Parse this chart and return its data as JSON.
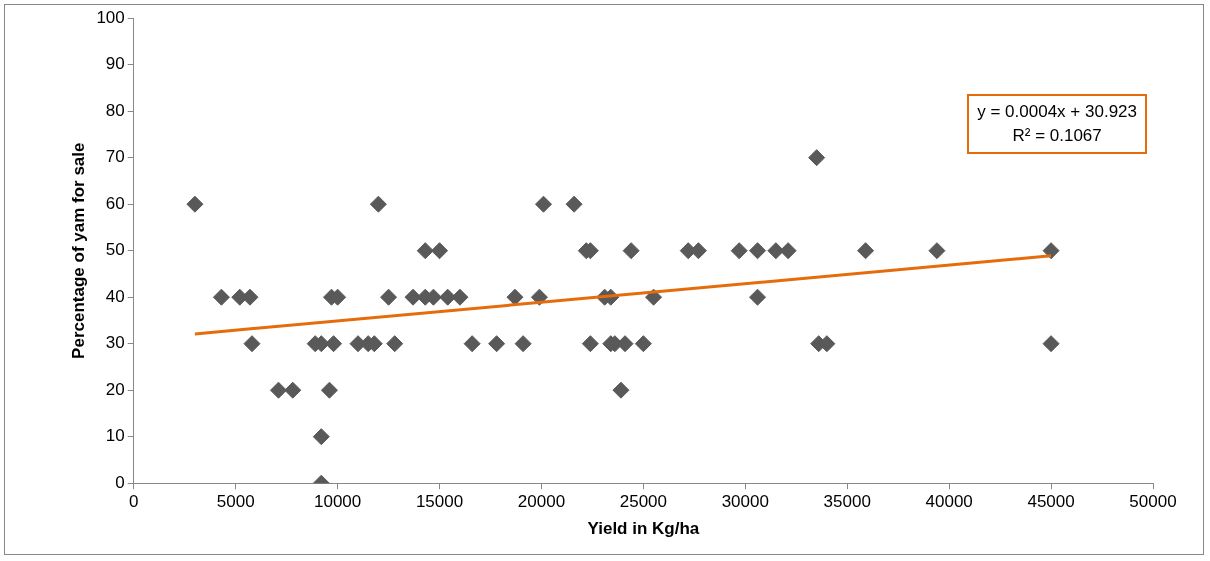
{
  "chart_data": {
    "type": "scatter",
    "xlabel": "Yield in Kg/ha",
    "ylabel": "Percentage of yam for sale",
    "xlim": [
      0,
      50000
    ],
    "xticks": [
      0,
      5000,
      10000,
      15000,
      20000,
      25000,
      30000,
      35000,
      40000,
      45000,
      50000
    ],
    "ylim": [
      0,
      100
    ],
    "yticks": [
      0,
      10,
      20,
      30,
      40,
      50,
      60,
      70,
      80,
      90,
      100
    ],
    "grid": false,
    "legend": false,
    "marker": "diamond",
    "annotations": [
      "y = 0.0004x + 30.923",
      "R² = 0.1067"
    ],
    "series": [
      {
        "color": "#595959",
        "x": [
          3000,
          12000,
          20100,
          21600,
          33500,
          4300,
          5200,
          5700,
          9700,
          10000,
          12500,
          13700,
          14300,
          14700,
          15400,
          16000,
          18700,
          19900,
          23100,
          23400,
          25500,
          30600,
          14300,
          15000,
          22200,
          22400,
          24400,
          27200,
          27700,
          29700,
          30600,
          31500,
          32100,
          35900,
          39400,
          45000,
          5800,
          8900,
          9200,
          9800,
          11000,
          11500,
          11800,
          12800,
          16600,
          17800,
          19100,
          22400,
          23400,
          23600,
          24100,
          25000,
          33600,
          34000,
          45000,
          7100,
          7800,
          9600,
          23900,
          9200,
          9200
        ],
        "values": [
          60,
          60,
          60,
          60,
          70,
          40,
          40,
          40,
          40,
          40,
          40,
          40,
          40,
          40,
          40,
          40,
          40,
          40,
          40,
          40,
          40,
          40,
          50,
          50,
          50,
          50,
          50,
          50,
          50,
          50,
          50,
          50,
          50,
          50,
          50,
          50,
          30,
          30,
          30,
          30,
          30,
          30,
          30,
          30,
          30,
          30,
          30,
          30,
          30,
          30,
          30,
          30,
          30,
          30,
          30,
          20,
          20,
          20,
          20,
          10,
          0
        ]
      },
      {
        "type": "line",
        "color": "#e46c0a",
        "marker": "none",
        "x": [
          3000,
          45000
        ],
        "values": [
          32.1,
          48.9
        ]
      }
    ]
  }
}
